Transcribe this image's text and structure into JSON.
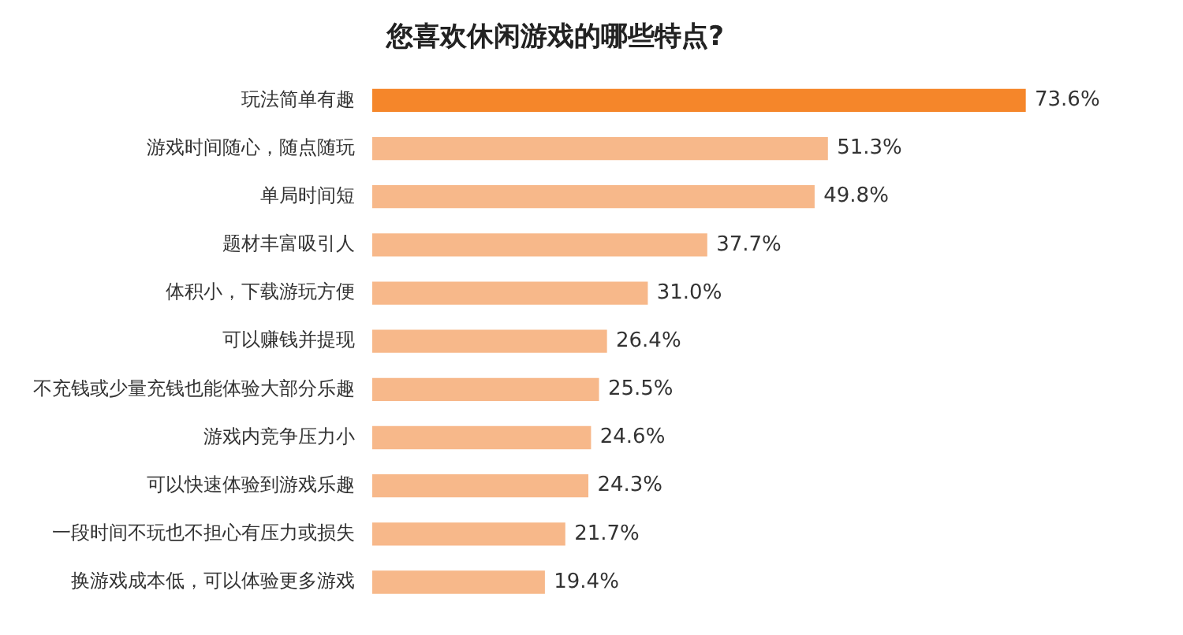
{
  "chart_data": {
    "type": "bar",
    "orientation": "horizontal",
    "title": "您喜欢休闲游戏的哪些特点?",
    "categories": [
      "玩法简单有趣",
      "游戏时间随心，随点随玩",
      "单局时间短",
      "题材丰富吸引人",
      "体积小，下载游玩方便",
      "可以赚钱并提现",
      "不充钱或少量充钱也能体验大部分乐趣",
      "游戏内竞争压力小",
      "可以快速体验到游戏乐趣",
      "一段时间不玩也不担心有压力或损失",
      "换游戏成本低，可以体验更多游戏"
    ],
    "values": [
      73.6,
      51.3,
      49.8,
      37.7,
      31.0,
      26.4,
      25.5,
      24.6,
      24.3,
      21.7,
      19.4
    ],
    "value_labels": [
      "73.6%",
      "51.3%",
      "49.8%",
      "37.7%",
      "31.0%",
      "26.4%",
      "25.5%",
      "24.6%",
      "24.3%",
      "21.7%",
      "19.4%"
    ],
    "colors": [
      "#f5862a",
      "#f7b88a",
      "#f7b88a",
      "#f7b88a",
      "#f7b88a",
      "#f7b88a",
      "#f7b88a",
      "#f7b88a",
      "#f7b88a",
      "#f7b88a",
      "#f7b88a"
    ],
    "legend": false
  }
}
